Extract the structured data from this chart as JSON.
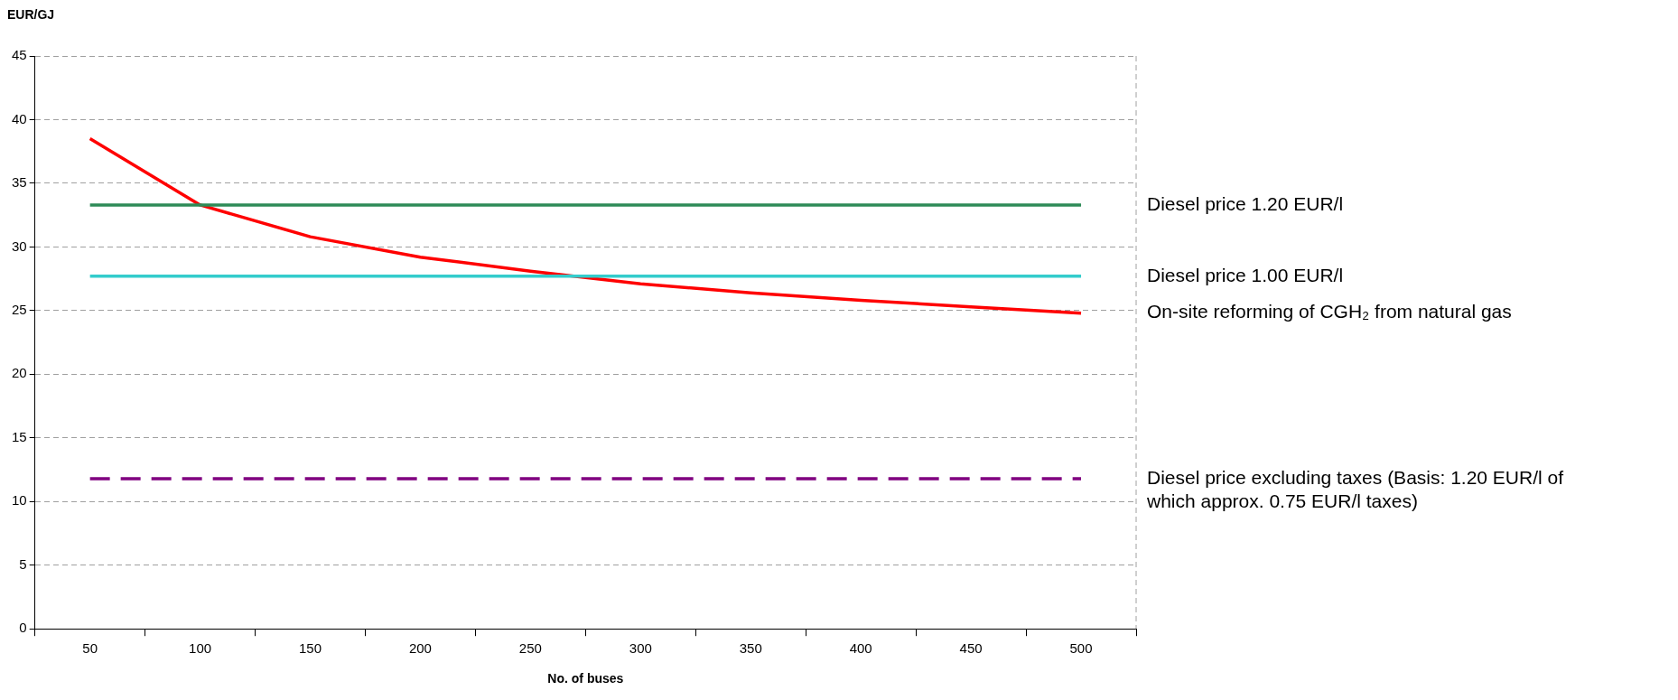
{
  "chart_data": {
    "type": "line",
    "xlabel": "No. of buses",
    "ylabel": "EUR/GJ",
    "categories": [
      "50",
      "100",
      "150",
      "200",
      "250",
      "300",
      "350",
      "400",
      "450",
      "500"
    ],
    "ylim": [
      0,
      45
    ],
    "yticks": [
      0,
      5,
      10,
      15,
      20,
      25,
      30,
      35,
      40,
      45
    ],
    "grid": "y",
    "legend": false,
    "marker": "none",
    "line_style": "solid",
    "series": [
      {
        "name": "Diesel price 1.20 EUR/l",
        "color": "#2e8b57",
        "values": [
          33.3,
          33.3,
          33.3,
          33.3,
          33.3,
          33.3,
          33.3,
          33.3,
          33.3,
          33.3
        ]
      },
      {
        "name": "Diesel price 1.00 EUR/l",
        "color": "#33cccc",
        "values": [
          27.7,
          27.7,
          27.7,
          27.7,
          27.7,
          27.7,
          27.7,
          27.7,
          27.7,
          27.7
        ]
      },
      {
        "name": "On-site reforming of CGH₂ from natural gas",
        "color": "#ff0000",
        "values": [
          38.5,
          33.3,
          30.8,
          29.2,
          28.1,
          27.1,
          26.4,
          25.8,
          25.3,
          24.8
        ]
      },
      {
        "name": "Diesel price excluding taxes (Basis: 1.20 EUR/l of which approx. 0.75 EUR/l taxes)",
        "color": "#800080",
        "line_style": "dashed",
        "values": [
          11.8,
          11.8,
          11.8,
          11.8,
          11.8,
          11.8,
          11.8,
          11.8,
          11.8,
          11.8
        ]
      }
    ]
  }
}
